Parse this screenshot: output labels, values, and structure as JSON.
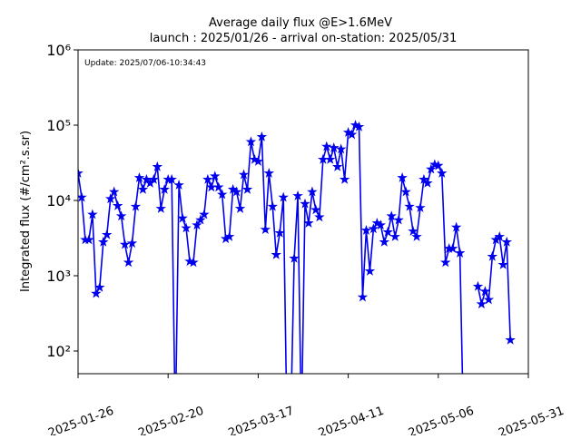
{
  "chart_data": {
    "type": "line",
    "title": "Average daily flux @E>1.6MeV",
    "subtitle": "launch : 2025/01/26 - arrival on-station: 2025/05/31",
    "ylabel": "Integrated flux (#/cm².s.sr)",
    "annotation": "Update: 2025/07/06-10:34:43",
    "color": "#0000ee",
    "log_y": true,
    "xlim": [
      "2025-01-26",
      "2025-05-31"
    ],
    "xticks": [
      "2025-01-26",
      "2025-02-20",
      "2025-03-17",
      "2025-04-11",
      "2025-05-06",
      "2025-05-31"
    ],
    "ylim": [
      50,
      1000000
    ],
    "yticks": [
      {
        "value": 100,
        "label": "10²"
      },
      {
        "value": 1000,
        "label": "10³"
      },
      {
        "value": 10000,
        "label": "10⁴"
      },
      {
        "value": 100000,
        "label": "10⁵"
      },
      {
        "value": 1000000,
        "label": "10⁶"
      }
    ],
    "x": [
      "2025-01-26",
      "2025-01-27",
      "2025-01-28",
      "2025-01-29",
      "2025-01-30",
      "2025-01-31",
      "2025-02-01",
      "2025-02-02",
      "2025-02-03",
      "2025-02-04",
      "2025-02-05",
      "2025-02-06",
      "2025-02-07",
      "2025-02-08",
      "2025-02-09",
      "2025-02-10",
      "2025-02-11",
      "2025-02-12",
      "2025-02-13",
      "2025-02-14",
      "2025-02-15",
      "2025-02-16",
      "2025-02-17",
      "2025-02-18",
      "2025-02-19",
      "2025-02-20",
      "2025-02-21",
      "2025-02-22",
      "2025-02-23",
      "2025-02-24",
      "2025-02-25",
      "2025-02-26",
      "2025-02-27",
      "2025-02-28",
      "2025-03-01",
      "2025-03-02",
      "2025-03-03",
      "2025-03-04",
      "2025-03-05",
      "2025-03-06",
      "2025-03-07",
      "2025-03-08",
      "2025-03-09",
      "2025-03-10",
      "2025-03-11",
      "2025-03-12",
      "2025-03-13",
      "2025-03-14",
      "2025-03-15",
      "2025-03-16",
      "2025-03-17",
      "2025-03-18",
      "2025-03-19",
      "2025-03-20",
      "2025-03-21",
      "2025-03-22",
      "2025-03-23",
      "2025-03-24",
      "2025-03-25",
      "2025-03-26",
      "2025-03-27",
      "2025-03-28",
      "2025-03-29",
      "2025-03-30",
      "2025-03-31",
      "2025-04-01",
      "2025-04-02",
      "2025-04-03",
      "2025-04-04",
      "2025-04-05",
      "2025-04-06",
      "2025-04-07",
      "2025-04-08",
      "2025-04-09",
      "2025-04-10",
      "2025-04-11",
      "2025-04-12",
      "2025-04-13",
      "2025-04-14",
      "2025-04-15",
      "2025-04-16",
      "2025-04-17",
      "2025-04-18",
      "2025-04-19",
      "2025-04-20",
      "2025-04-21",
      "2025-04-22",
      "2025-04-23",
      "2025-04-24",
      "2025-04-25",
      "2025-04-26",
      "2025-04-27",
      "2025-04-28",
      "2025-04-29",
      "2025-04-30",
      "2025-05-01",
      "2025-05-02",
      "2025-05-03",
      "2025-05-04",
      "2025-05-05",
      "2025-05-06",
      "2025-05-07",
      "2025-05-08",
      "2025-05-09",
      "2025-05-10",
      "2025-05-11",
      "2025-05-12",
      "2025-05-13",
      "2025-05-14",
      "2025-05-15",
      "2025-05-16",
      "2025-05-17",
      "2025-05-18",
      "2025-05-19",
      "2025-05-20",
      "2025-05-21",
      "2025-05-22",
      "2025-05-23",
      "2025-05-24",
      "2025-05-25",
      "2025-05-26"
    ],
    "values": [
      23000,
      11000,
      3000,
      3000,
      6500,
      580,
      700,
      2800,
      3500,
      10500,
      13000,
      8500,
      6200,
      2600,
      1500,
      2700,
      8300,
      20000,
      14000,
      19000,
      17000,
      19000,
      28000,
      7800,
      14000,
      19000,
      19000,
      0,
      16000,
      5800,
      4300,
      1550,
      1500,
      4700,
      5500,
      6500,
      19000,
      15000,
      21000,
      15000,
      12000,
      3100,
      3300,
      14000,
      13000,
      7800,
      22000,
      14000,
      60000,
      35000,
      33000,
      70000,
      4100,
      23000,
      8300,
      1900,
      3700,
      11000,
      0,
      0,
      1700,
      11500,
      0,
      9000,
      5000,
      13000,
      7500,
      6000,
      35000,
      52000,
      35000,
      50000,
      28000,
      48000,
      19000,
      80000,
      75000,
      100000,
      95000,
      520,
      4000,
      1150,
      4200,
      5000,
      4700,
      2800,
      3800,
      6200,
      3300,
      5500,
      20000,
      13000,
      8300,
      3900,
      3300,
      8000,
      19000,
      17000,
      26000,
      30000,
      29000,
      23000,
      1500,
      2300,
      2300,
      4400,
      2000,
      0,
      null,
      null,
      null,
      720,
      420,
      620,
      480,
      1800,
      3000,
      3300,
      1400,
      2800,
      140
    ]
  }
}
